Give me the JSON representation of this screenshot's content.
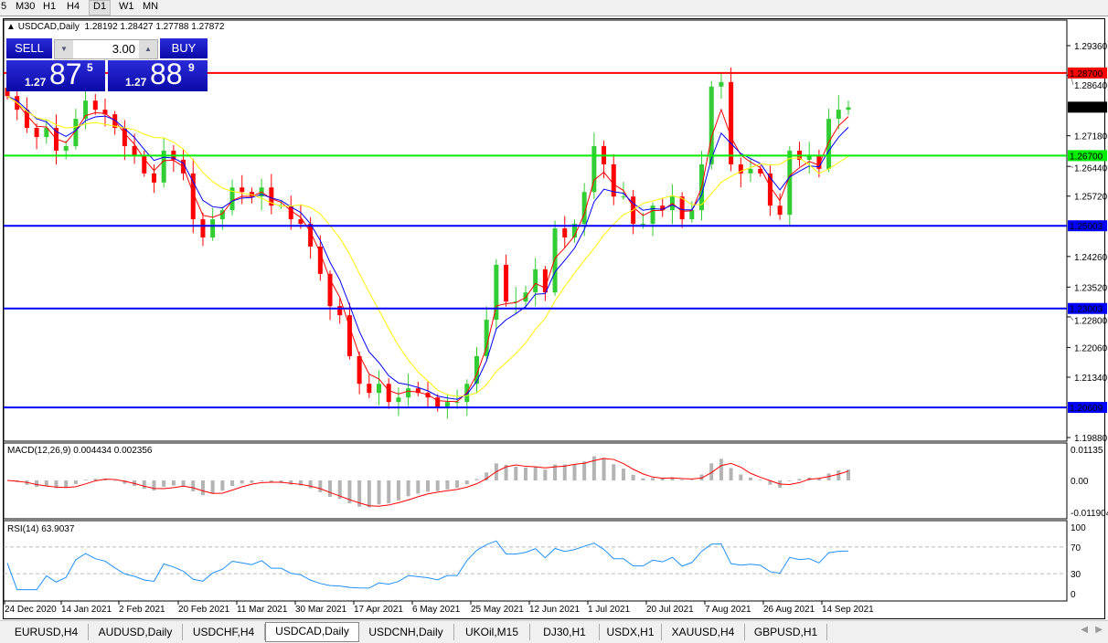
{
  "toolbar": {
    "timeframes": [
      "5",
      "M30",
      "H1",
      "H4",
      "D1",
      "W1",
      "MN"
    ],
    "active": "D1"
  },
  "header": {
    "symbol_line": "USDCAD,Daily",
    "ohlc": "1.28192 1.28427 1.27788 1.27872"
  },
  "trade_panel": {
    "sell_label": "SELL",
    "buy_label": "BUY",
    "lot": "3.00",
    "sell_prefix": "1.27",
    "sell_big": "87",
    "sell_sup": "5",
    "buy_prefix": "1.27",
    "buy_big": "88",
    "buy_sup": "9"
  },
  "chart_data": {
    "type": "candlestick",
    "symbol": "USDCAD",
    "timeframe": "Daily",
    "price_ticks": [
      "1.29360",
      "1.28640",
      "1.27180",
      "1.26440",
      "1.25720",
      "1.24260",
      "1.23520",
      "1.22800",
      "1.22060",
      "1.21340",
      "1.19880"
    ],
    "ylim": [
      1.1988,
      1.299
    ],
    "date_ticks": [
      "24 Dec 2020",
      "14 Jan 2021",
      "2 Feb 2021",
      "20 Feb 2021",
      "11 Mar 2021",
      "30 Mar 2021",
      "17 Apr 2021",
      "6 May 2021",
      "25 May 2021",
      "12 Jun 2021",
      "1 Jul 2021",
      "20 Jul 2021",
      "7 Aug 2021",
      "26 Aug 2021",
      "14 Sep 2021"
    ],
    "closes": [
      1.2814,
      1.2781,
      1.2737,
      1.2715,
      1.2737,
      1.2682,
      1.2693,
      1.2759,
      1.2803,
      1.2781,
      1.277,
      1.2737,
      1.2693,
      1.2671,
      1.2627,
      1.2605,
      1.2682,
      1.266,
      1.2627,
      1.2516,
      1.2472,
      1.2516,
      1.2538,
      1.2593,
      1.2582,
      1.2571,
      1.2593,
      1.2549,
      1.2549,
      1.2516,
      1.2505,
      1.245,
      1.2384,
      1.2306,
      1.2284,
      1.2185,
      1.2118,
      1.2096,
      1.2118,
      1.2074,
      1.2085,
      1.2107,
      1.2096,
      1.2085,
      1.2063,
      1.2074,
      1.2074,
      1.2118,
      1.2185,
      1.2273,
      1.2406,
      1.2317,
      1.2317,
      1.2339,
      1.2395,
      1.2339,
      1.2494,
      1.2472,
      1.2505,
      1.2582,
      1.2693,
      1.2649,
      1.2571,
      1.2571,
      1.2505,
      1.2505,
      1.2549,
      1.2538,
      1.2571,
      1.2516,
      1.2538,
      1.2649,
      1.2837,
      1.2848,
      1.2649,
      1.2627,
      1.2638,
      1.2627,
      1.2549,
      1.2527,
      1.2682,
      1.266,
      1.2671,
      1.2638,
      1.2759,
      1.2781,
      1.2787
    ],
    "horizontal_lines": [
      {
        "price": "1.28700",
        "color": "#ff0000"
      },
      {
        "price": "1.26700",
        "color": "#00ee00"
      },
      {
        "price": "1.25003",
        "color": "#0000ff"
      },
      {
        "price": "1.23003",
        "color": "#0000ff"
      },
      {
        "price": "1.20609",
        "color": "#0000ff"
      }
    ],
    "current_price": "1.27872",
    "moving_averages": [
      {
        "color": "#ff0000"
      },
      {
        "color": "#0000ff"
      },
      {
        "color": "#ffff00"
      }
    ],
    "bull_color": "#32cd32",
    "bear_color": "#ff0000"
  },
  "macd": {
    "label": "MACD(12,26,9) 0.004434 0.002356",
    "ticks": [
      "0.01135",
      "0.00",
      "-0.011904"
    ]
  },
  "rsi": {
    "label": "RSI(14) 63.9037",
    "ticks": [
      "100",
      "70",
      "30",
      "0"
    ]
  },
  "tabs": [
    "EURUSD,H4",
    "AUDUSD,Daily",
    "USDCHF,H4",
    "USDCAD,Daily",
    "USDCNH,Daily",
    "UKOil,M15",
    "DJ30,H1",
    "USDX,H1",
    "XAUUSD,H4",
    "GBPUSD,H1"
  ],
  "active_tab": "USDCAD,Daily"
}
